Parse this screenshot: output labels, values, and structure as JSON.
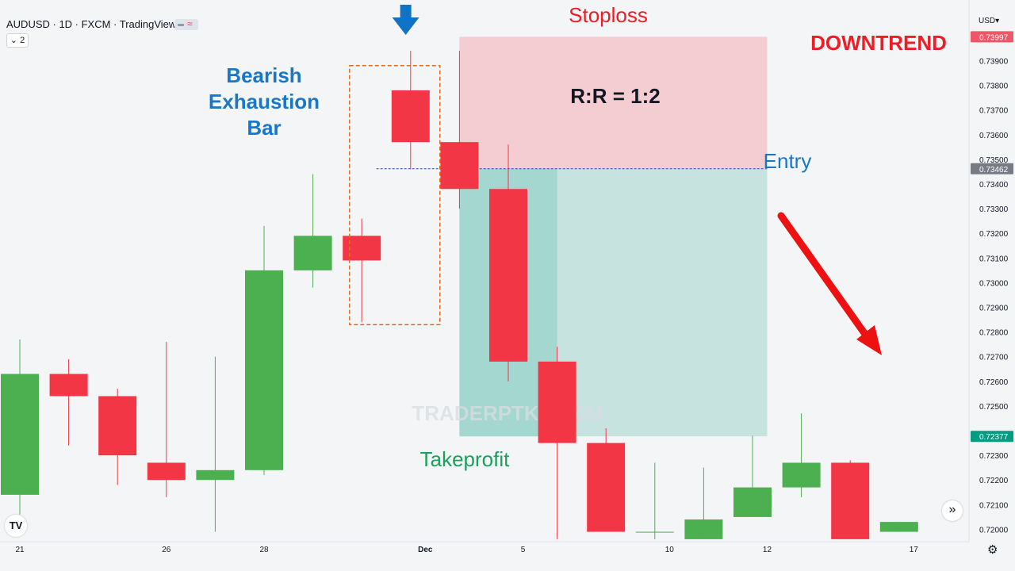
{
  "header": {
    "title": "AUDUSD · 1D · FXCM · TradingView",
    "collapse_label": "⌄ 2",
    "currency": "USD",
    "currency_caret": "▾"
  },
  "annotations": {
    "stoploss": "Stoploss",
    "downtrend": "DOWNTREND",
    "bearish_title": [
      "Bearish",
      "Exhaustion",
      "Bar"
    ],
    "rr": "R:R = 1:2",
    "entry": "Entry",
    "takeprofit": "Takeprofit",
    "watermark": "TRADERPTKT.COM"
  },
  "colors": {
    "bull": "#4caf50",
    "bear": "#f23645",
    "stop_zone": "#f4cdd3",
    "profit_zone": "#c6e3df",
    "profit_zone_dark": "#a3d7cf",
    "stoploss_text": "#ee1c25",
    "takeprofit_text": "#1aa15a",
    "bearish_text": "#1977c9",
    "entry_text": "#1977c9",
    "down_arrow": "#0f74c8",
    "trend_arrow": "#ee1111",
    "box_outline": "#e8691c"
  },
  "icons": {
    "logo": "tradingview-logo-icon",
    "scroll": "scroll-forward-icon",
    "settings": "gear-icon"
  },
  "chart_data": {
    "type": "candlestick",
    "symbol": "AUDUSD",
    "timeframe": "1D",
    "ylim": [
      0.7195,
      0.7404
    ],
    "y_ticks": [
      0.72,
      0.721,
      0.722,
      0.723,
      0.725,
      0.726,
      0.727,
      0.728,
      0.729,
      0.73,
      0.731,
      0.732,
      0.733,
      0.734,
      0.735,
      0.736,
      0.737,
      0.738,
      0.739
    ],
    "x_ticks": [
      {
        "label": "21",
        "index": 0
      },
      {
        "label": "26",
        "index": 3
      },
      {
        "label": "28",
        "index": 5
      },
      {
        "label": "Dec",
        "index": 8.3
      },
      {
        "label": "5",
        "index": 10.3
      },
      {
        "label": "10",
        "index": 13.3
      },
      {
        "label": "12",
        "index": 15.3
      },
      {
        "label": "17",
        "index": 18.3
      }
    ],
    "candles": [
      {
        "o": 0.7214,
        "h": 0.7277,
        "l": 0.7206,
        "c": 0.7263
      },
      {
        "o": 0.7263,
        "h": 0.7269,
        "l": 0.7234,
        "c": 0.7254
      },
      {
        "o": 0.7254,
        "h": 0.7257,
        "l": 0.7218,
        "c": 0.723
      },
      {
        "o": 0.7227,
        "h": 0.7276,
        "l": 0.7213,
        "c": 0.722
      },
      {
        "o": 0.722,
        "h": 0.727,
        "l": 0.7199,
        "c": 0.7224
      },
      {
        "o": 0.7224,
        "h": 0.7323,
        "l": 0.7222,
        "c": 0.7305
      },
      {
        "o": 0.7305,
        "h": 0.7344,
        "l": 0.7298,
        "c": 0.7319
      },
      {
        "o": 0.7319,
        "h": 0.7326,
        "l": 0.7284,
        "c": 0.7309
      },
      {
        "o": 0.7378,
        "h": 0.7394,
        "l": 0.7346,
        "c": 0.7357
      },
      {
        "o": 0.7357,
        "h": 0.7394,
        "l": 0.733,
        "c": 0.7338
      },
      {
        "o": 0.7338,
        "h": 0.7356,
        "l": 0.726,
        "c": 0.7268
      },
      {
        "o": 0.7268,
        "h": 0.7274,
        "l": 0.7196,
        "c": 0.7235
      },
      {
        "o": 0.7235,
        "h": 0.7241,
        "l": 0.7199,
        "c": 0.7199
      },
      {
        "o": 0.7199,
        "h": 0.7227,
        "l": 0.7196,
        "c": 0.7199
      },
      {
        "o": 0.7196,
        "h": 0.7225,
        "l": 0.7196,
        "c": 0.7204
      },
      {
        "o": 0.7205,
        "h": 0.7238,
        "l": 0.7205,
        "c": 0.7217
      },
      {
        "o": 0.7217,
        "h": 0.7247,
        "l": 0.7213,
        "c": 0.7227
      },
      {
        "o": 0.7227,
        "h": 0.7228,
        "l": 0.7196,
        "c": 0.7196
      },
      {
        "o": 0.7199,
        "h": 0.7203,
        "l": 0.7199,
        "c": 0.7203
      }
    ],
    "position": {
      "side": "short",
      "entry": 0.73462,
      "stop": 0.73997,
      "target": 0.72377,
      "entry_label": "0.73462",
      "stop_label": "0.73997",
      "target_label": "0.72377"
    }
  }
}
